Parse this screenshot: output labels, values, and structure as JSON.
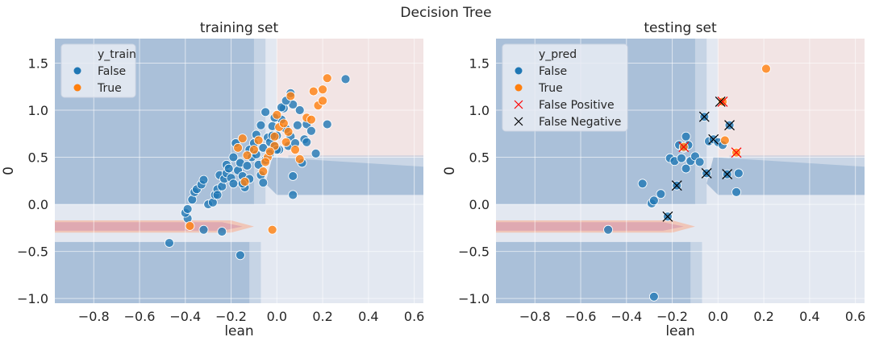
{
  "suptitle": "Decision Tree",
  "colors": {
    "false": "#1f77b4",
    "true": "#ff7f0e",
    "false_positive_marker": "#ff0000",
    "false_negative_marker": "#000000",
    "region_blue": "#aac0d9",
    "region_pink": "#f2e4e4",
    "region_grey": "#e3e8f1",
    "region_red": "#dfa9b1",
    "grid": "#ffffff"
  },
  "chart_data": [
    {
      "type": "scatter",
      "title": "training set",
      "xlabel": "lean",
      "ylabel": "0",
      "xlim": [
        -0.97,
        0.64
      ],
      "ylim": [
        -1.05,
        1.76
      ],
      "xticks": [
        "−0.8",
        "−0.6",
        "−0.4",
        "−0.2",
        "0.0",
        "0.2",
        "0.4",
        "0.6"
      ],
      "xtick_values": [
        -0.8,
        -0.6,
        -0.4,
        -0.2,
        0.0,
        0.2,
        0.4,
        0.6
      ],
      "yticks": [
        "1.5",
        "1.0",
        "0.5",
        "0.0",
        "−0.5",
        "−1.0"
      ],
      "ytick_values": [
        1.5,
        1.0,
        0.5,
        0.0,
        -0.5,
        -1.0
      ],
      "grid": true,
      "legend": {
        "title": "y_train",
        "placement": "top-left",
        "entries": [
          {
            "label": "False",
            "marker": "dot",
            "color_key": "false"
          },
          {
            "label": "True",
            "marker": "dot",
            "color_key": "true"
          }
        ]
      },
      "series": [
        {
          "name": "False",
          "color_key": "false",
          "points": [
            [
              -0.47,
              -0.41
            ],
            [
              -0.16,
              -0.54
            ],
            [
              -0.24,
              -0.29
            ],
            [
              -0.32,
              -0.27
            ],
            [
              -0.39,
              -0.15
            ],
            [
              -0.4,
              -0.09
            ],
            [
              -0.39,
              -0.05
            ],
            [
              -0.37,
              0.05
            ],
            [
              -0.36,
              0.13
            ],
            [
              -0.35,
              0.16
            ],
            [
              -0.33,
              0.21
            ],
            [
              -0.32,
              0.26
            ],
            [
              -0.3,
              0.0
            ],
            [
              -0.28,
              0.02
            ],
            [
              -0.27,
              0.1
            ],
            [
              -0.26,
              0.16
            ],
            [
              -0.25,
              0.31
            ],
            [
              -0.24,
              0.19
            ],
            [
              -0.23,
              0.27
            ],
            [
              -0.22,
              0.33
            ],
            [
              -0.22,
              0.42
            ],
            [
              -0.21,
              0.38
            ],
            [
              -0.2,
              0.28
            ],
            [
              -0.19,
              0.22
            ],
            [
              -0.19,
              0.5
            ],
            [
              -0.18,
              0.65
            ],
            [
              -0.17,
              0.36
            ],
            [
              -0.16,
              0.44
            ],
            [
              -0.15,
              0.3
            ],
            [
              -0.14,
              0.18
            ],
            [
              -0.13,
              0.41
            ],
            [
              -0.12,
              0.58
            ],
            [
              -0.11,
              0.5
            ],
            [
              -0.1,
              0.65
            ],
            [
              -0.09,
              0.53
            ],
            [
              -0.08,
              0.42
            ],
            [
              -0.07,
              0.31
            ],
            [
              -0.06,
              0.6
            ],
            [
              -0.05,
              0.47
            ],
            [
              -0.04,
              0.71
            ],
            [
              -0.03,
              0.54
            ],
            [
              -0.03,
              0.66
            ],
            [
              -0.02,
              0.83
            ],
            [
              -0.01,
              0.62
            ],
            [
              0.0,
              0.73
            ],
            [
              0.01,
              0.58
            ],
            [
              0.02,
              0.9
            ],
            [
              0.03,
              1.02
            ],
            [
              0.04,
              0.8
            ],
            [
              0.05,
              0.62
            ],
            [
              0.06,
              0.72
            ],
            [
              0.07,
              1.06
            ],
            [
              0.09,
              0.84
            ],
            [
              0.1,
              1.0
            ],
            [
              0.11,
              0.44
            ],
            [
              0.12,
              0.69
            ],
            [
              0.13,
              0.85
            ],
            [
              0.15,
              0.78
            ],
            [
              0.17,
              0.54
            ],
            [
              0.22,
              0.85
            ],
            [
              0.3,
              1.33
            ],
            [
              0.07,
              0.3
            ],
            [
              0.07,
              0.1
            ],
            [
              -0.07,
              0.84
            ],
            [
              -0.05,
              0.98
            ],
            [
              -0.01,
              0.92
            ],
            [
              0.02,
              1.03
            ],
            [
              0.04,
              1.1
            ],
            [
              0.06,
              1.18
            ],
            [
              0.08,
              0.65
            ],
            [
              0.13,
              0.66
            ],
            [
              -0.12,
              0.27
            ],
            [
              -0.15,
              0.22
            ],
            [
              -0.26,
              0.1
            ],
            [
              -0.09,
              0.74
            ],
            [
              -0.02,
              0.73
            ],
            [
              0.0,
              0.58
            ],
            [
              -0.06,
              0.23
            ]
          ]
        },
        {
          "name": "True",
          "color_key": "true",
          "points": [
            [
              -0.38,
              -0.23
            ],
            [
              -0.02,
              -0.27
            ],
            [
              -0.17,
              0.6
            ],
            [
              -0.15,
              0.7
            ],
            [
              -0.14,
              0.24
            ],
            [
              -0.06,
              0.35
            ],
            [
              -0.04,
              0.5
            ],
            [
              -0.01,
              0.62
            ],
            [
              0.01,
              0.82
            ],
            [
              0.03,
              0.86
            ],
            [
              0.05,
              0.77
            ],
            [
              0.06,
              1.15
            ],
            [
              0.08,
              0.58
            ],
            [
              0.1,
              0.48
            ],
            [
              0.13,
              0.92
            ],
            [
              0.15,
              0.9
            ],
            [
              0.16,
              1.2
            ],
            [
              0.18,
              1.05
            ],
            [
              0.2,
              1.22
            ],
            [
              0.22,
              1.34
            ],
            [
              0.2,
              1.1
            ],
            [
              -0.08,
              0.68
            ],
            [
              -0.03,
              0.56
            ],
            [
              -0.1,
              0.58
            ],
            [
              -0.13,
              0.52
            ],
            [
              -0.01,
              0.72
            ],
            [
              0.04,
              0.66
            ],
            [
              0.0,
              0.95
            ],
            [
              -0.05,
              0.45
            ]
          ]
        }
      ]
    },
    {
      "type": "scatter",
      "title": "testing set",
      "xlabel": "lean",
      "ylabel": "0",
      "xlim": [
        -0.97,
        0.64
      ],
      "ylim": [
        -1.05,
        1.76
      ],
      "xticks": [
        "−0.8",
        "−0.6",
        "−0.4",
        "−0.2",
        "0.0",
        "0.2",
        "0.4",
        "0.6"
      ],
      "xtick_values": [
        -0.8,
        -0.6,
        -0.4,
        -0.2,
        0.0,
        0.2,
        0.4,
        0.6
      ],
      "yticks": [
        "1.5",
        "1.0",
        "0.5",
        "0.0",
        "−0.5",
        "−1.0"
      ],
      "ytick_values": [
        1.5,
        1.0,
        0.5,
        0.0,
        -0.5,
        -1.0
      ],
      "grid": true,
      "legend": {
        "title": "y_pred",
        "placement": "top-left",
        "entries": [
          {
            "label": "False",
            "marker": "dot",
            "color_key": "false"
          },
          {
            "label": "True",
            "marker": "dot",
            "color_key": "true"
          },
          {
            "label": "False Positive",
            "marker": "x",
            "color_key": "false_positive_marker"
          },
          {
            "label": "False Negative",
            "marker": "x",
            "color_key": "false_negative_marker"
          }
        ]
      },
      "series": [
        {
          "name": "False",
          "color_key": "false",
          "points": [
            [
              -0.48,
              -0.27
            ],
            [
              -0.28,
              -0.98
            ],
            [
              -0.33,
              0.22
            ],
            [
              -0.29,
              0.01
            ],
            [
              -0.28,
              0.04
            ],
            [
              -0.25,
              0.11
            ],
            [
              -0.22,
              -0.13
            ],
            [
              -0.21,
              0.49
            ],
            [
              -0.19,
              0.46
            ],
            [
              -0.18,
              0.2
            ],
            [
              -0.17,
              0.63
            ],
            [
              -0.16,
              0.49
            ],
            [
              -0.15,
              0.6
            ],
            [
              -0.14,
              0.72
            ],
            [
              -0.14,
              0.38
            ],
            [
              -0.13,
              0.63
            ],
            [
              -0.12,
              0.46
            ],
            [
              -0.1,
              0.51
            ],
            [
              -0.08,
              0.45
            ],
            [
              -0.06,
              0.93
            ],
            [
              -0.05,
              0.33
            ],
            [
              -0.04,
              0.67
            ],
            [
              -0.02,
              0.69
            ],
            [
              0.0,
              0.66
            ],
            [
              0.02,
              0.63
            ],
            [
              0.04,
              0.32
            ],
            [
              0.05,
              0.84
            ],
            [
              0.08,
              0.13
            ],
            [
              0.09,
              0.33
            ]
          ]
        },
        {
          "name": "True",
          "color_key": "true",
          "points": [
            [
              0.21,
              1.44
            ],
            [
              0.02,
              1.09
            ],
            [
              0.03,
              0.68
            ],
            [
              0.08,
              0.55
            ],
            [
              -0.15,
              0.61
            ]
          ]
        },
        {
          "name": "False Positive",
          "color_key": "false_positive_marker",
          "marker": "x",
          "points": [
            [
              0.02,
              1.09
            ],
            [
              0.08,
              0.55
            ],
            [
              -0.15,
              0.61
            ]
          ]
        },
        {
          "name": "False Negative",
          "color_key": "false_negative_marker",
          "marker": "x",
          "points": [
            [
              -0.22,
              -0.13
            ],
            [
              -0.18,
              0.2
            ],
            [
              -0.06,
              0.93
            ],
            [
              -0.05,
              0.33
            ],
            [
              -0.02,
              0.69
            ],
            [
              0.04,
              0.32
            ],
            [
              0.05,
              0.84
            ],
            [
              0.01,
              1.09
            ]
          ]
        }
      ]
    }
  ]
}
